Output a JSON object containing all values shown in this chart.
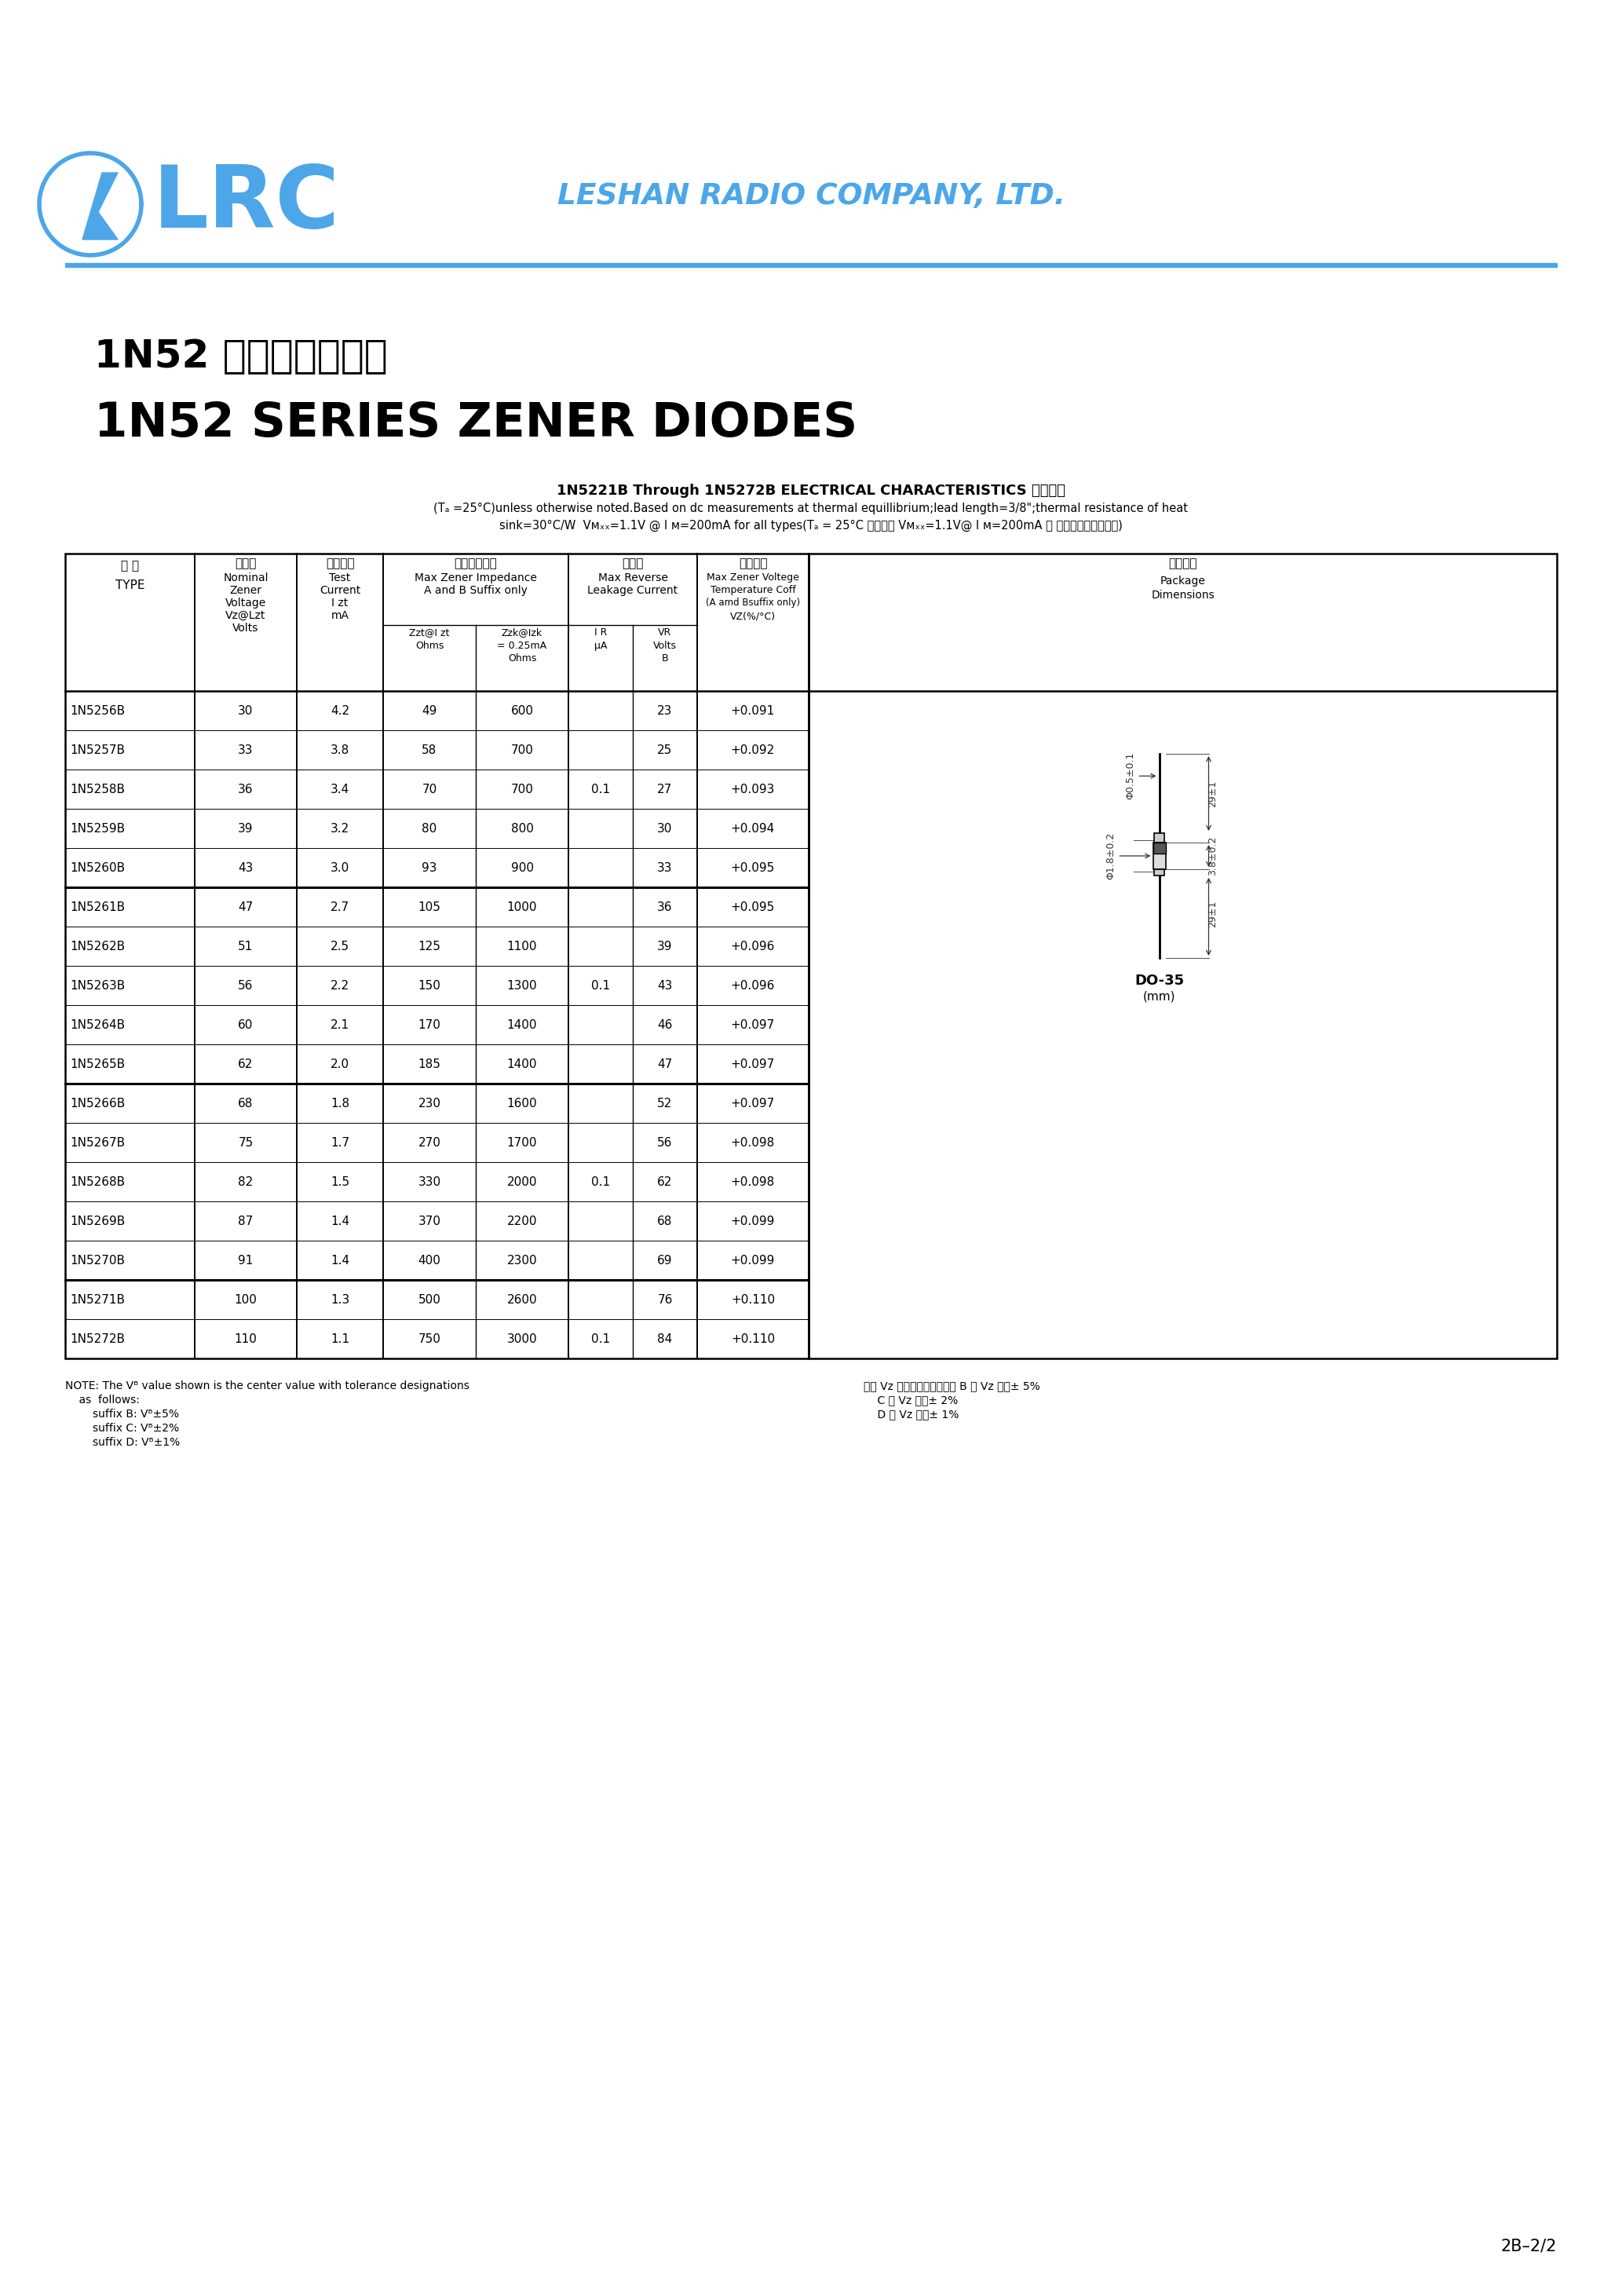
{
  "page_bg": "#ffffff",
  "logo_color": "#4da6e8",
  "company_name": "LESHAN RADIO COMPANY, LTD.",
  "title_chinese": "1N52 系列稳压二极管",
  "title_english": "1N52 SERIES ZENER DIODES",
  "table_title_en": "1N5221B Through 1N5272B ELECTRICAL CHARACTERISTICS",
  "table_title_cn": "电气参数",
  "table_note1": "(Tₐ =25°C)unless otherwise noted.Based on dc measurements at thermal equillibrium;lead length=3/8\";thermal resistance of heat",
  "table_note2": "sink=30°C/W  Vᴍₓₓ=1.1V @ I ᴍ=200mA for all types(Tₐ = 25°C 所有型号 Vᴍₓₓ=1.1V@ I ᴍ=200mA ． 其它特别说明除外。)",
  "rows": [
    {
      "type": "1N5256B",
      "vz": "30",
      "izt": "4.2",
      "zzt": "49",
      "zzk": "600",
      "ir": "",
      "vr": "23",
      "tc": "+0.091",
      "group": 0
    },
    {
      "type": "1N5257B",
      "vz": "33",
      "izt": "3.8",
      "zzt": "58",
      "zzk": "700",
      "ir": "",
      "vr": "25",
      "tc": "+0.092",
      "group": 0
    },
    {
      "type": "1N5258B",
      "vz": "36",
      "izt": "3.4",
      "zzt": "70",
      "zzk": "700",
      "ir": "0.1",
      "vr": "27",
      "tc": "+0.093",
      "group": 0
    },
    {
      "type": "1N5259B",
      "vz": "39",
      "izt": "3.2",
      "zzt": "80",
      "zzk": "800",
      "ir": "",
      "vr": "30",
      "tc": "+0.094",
      "group": 0
    },
    {
      "type": "1N5260B",
      "vz": "43",
      "izt": "3.0",
      "zzt": "93",
      "zzk": "900",
      "ir": "",
      "vr": "33",
      "tc": "+0.095",
      "group": 0
    },
    {
      "type": "1N5261B",
      "vz": "47",
      "izt": "2.7",
      "zzt": "105",
      "zzk": "1000",
      "ir": "",
      "vr": "36",
      "tc": "+0.095",
      "group": 1
    },
    {
      "type": "1N5262B",
      "vz": "51",
      "izt": "2.5",
      "zzt": "125",
      "zzk": "1100",
      "ir": "",
      "vr": "39",
      "tc": "+0.096",
      "group": 1
    },
    {
      "type": "1N5263B",
      "vz": "56",
      "izt": "2.2",
      "zzt": "150",
      "zzk": "1300",
      "ir": "0.1",
      "vr": "43",
      "tc": "+0.096",
      "group": 1
    },
    {
      "type": "1N5264B",
      "vz": "60",
      "izt": "2.1",
      "zzt": "170",
      "zzk": "1400",
      "ir": "",
      "vr": "46",
      "tc": "+0.097",
      "group": 1
    },
    {
      "type": "1N5265B",
      "vz": "62",
      "izt": "2.0",
      "zzt": "185",
      "zzk": "1400",
      "ir": "",
      "vr": "47",
      "tc": "+0.097",
      "group": 1
    },
    {
      "type": "1N5266B",
      "vz": "68",
      "izt": "1.8",
      "zzt": "230",
      "zzk": "1600",
      "ir": "",
      "vr": "52",
      "tc": "+0.097",
      "group": 2
    },
    {
      "type": "1N5267B",
      "vz": "75",
      "izt": "1.7",
      "zzt": "270",
      "zzk": "1700",
      "ir": "",
      "vr": "56",
      "tc": "+0.098",
      "group": 2
    },
    {
      "type": "1N5268B",
      "vz": "82",
      "izt": "1.5",
      "zzt": "330",
      "zzk": "2000",
      "ir": "0.1",
      "vr": "62",
      "tc": "+0.098",
      "group": 2
    },
    {
      "type": "1N5269B",
      "vz": "87",
      "izt": "1.4",
      "zzt": "370",
      "zzk": "2200",
      "ir": "",
      "vr": "68",
      "tc": "+0.099",
      "group": 2
    },
    {
      "type": "1N5270B",
      "vz": "91",
      "izt": "1.4",
      "zzt": "400",
      "zzk": "2300",
      "ir": "",
      "vr": "69",
      "tc": "+0.099",
      "group": 2
    },
    {
      "type": "1N5271B",
      "vz": "100",
      "izt": "1.3",
      "zzt": "500",
      "zzk": "2600",
      "ir": "",
      "vr": "76",
      "tc": "+0.110",
      "group": 3
    },
    {
      "type": "1N5272B",
      "vz": "110",
      "izt": "1.1",
      "zzt": "750",
      "zzk": "3000",
      "ir": "0.1",
      "vr": "84",
      "tc": "+0.110",
      "group": 3
    }
  ],
  "ir_by_group": {
    "0": "0.1",
    "1": "0.1",
    "2": "0.1",
    "3": "0.1"
  },
  "ir_row_in_group": {
    "0": 2,
    "1": 2,
    "2": 2,
    "3": 1
  },
  "note_en_line1": "NOTE: The Vᴮ value shown is the center value with tolerance designations",
  "note_en_line2": "    as  follows:",
  "note_en_line3": "        suffix B: Vᴮ±5%",
  "note_en_line4": "        suffix C: Vᴮ±2%",
  "note_en_line5": "        suffix D: Vᴮ±1%",
  "note_cn_line1": "注： Vz 为稳压中心值，其中 B 档 Vz 容差± 5%",
  "note_cn_line2": "    C 档 Vz 容差± 2%",
  "note_cn_line3": "    D 档 Vz 容差± 1%",
  "page_number": "2B–2/2"
}
